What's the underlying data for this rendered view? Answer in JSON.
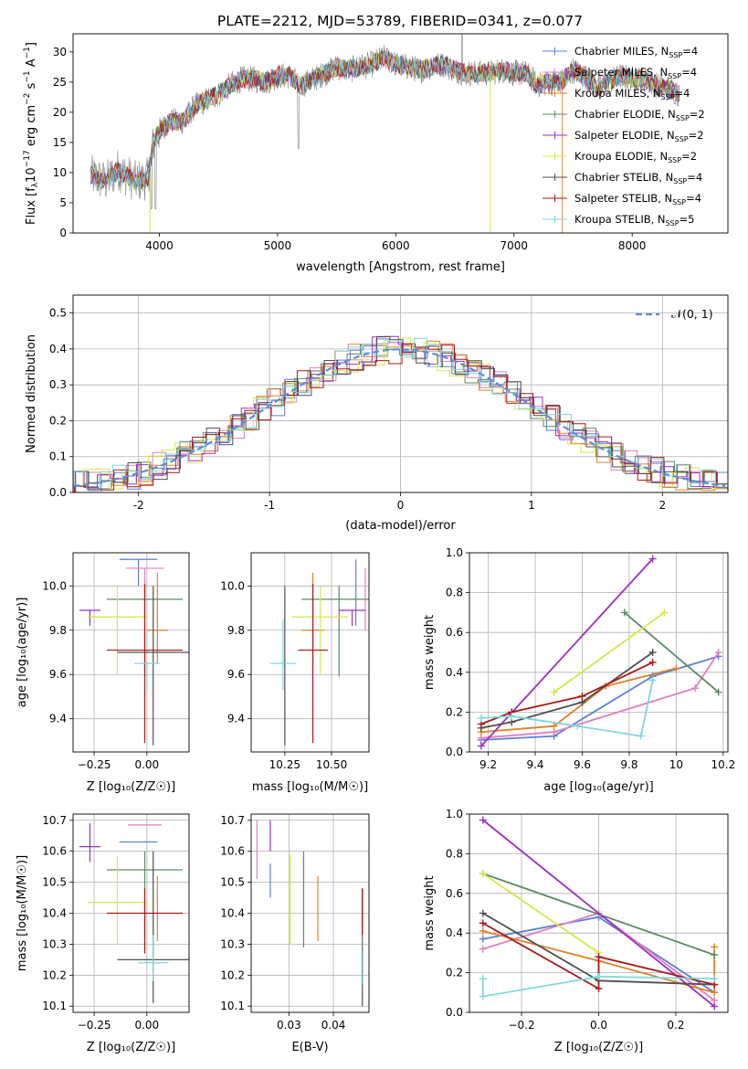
{
  "title": "PLATE=2212, MJD=53789, FIBERID=0341, z=0.077",
  "colors": {
    "Chabrier MILES": "#5b7fd9",
    "Salpeter MILES": "#e07fc0",
    "Kroupa MILES": "#e0822b",
    "Chabrier ELODIE": "#5c8a6a",
    "Salpeter ELODIE": "#9b30c0",
    "Kroupa ELODIE": "#d4e84a",
    "Chabrier STELIB": "#505050",
    "Salpeter STELIB": "#a81818",
    "Kroupa STELIB": "#7fd8dc",
    "gaussian": "#5b8fd9",
    "data": "#808080"
  },
  "chart_data": [
    {
      "id": "spectrum",
      "type": "line",
      "xlabel": "wavelength [Angstrom, rest frame]",
      "ylabel": "Flux [f_λ10^-17 erg cm^-2 s^-1 A^-1]",
      "xlim": [
        3270,
        8810
      ],
      "ylim": [
        0,
        33
      ],
      "xticks": [
        4000,
        5000,
        6000,
        7000,
        8000
      ],
      "yticks": [
        0,
        5,
        10,
        15,
        20,
        25,
        30
      ],
      "legend_position": "right",
      "legend": [
        {
          "label": "Chabrier MILES, N",
          "sub": "SSP",
          "suffix": "=4"
        },
        {
          "label": "Salpeter MILES, N",
          "sub": "SSP",
          "suffix": "=4"
        },
        {
          "label": "Kroupa MILES, N",
          "sub": "SSP",
          "suffix": "=4"
        },
        {
          "label": "Chabrier ELODIE, N",
          "sub": "SSP",
          "suffix": "=2"
        },
        {
          "label": "Salpeter ELODIE, N",
          "sub": "SSP",
          "suffix": "=2"
        },
        {
          "label": "Kroupa ELODIE, N",
          "sub": "SSP",
          "suffix": "=2"
        },
        {
          "label": "Chabrier STELIB, N",
          "sub": "SSP",
          "suffix": "=4"
        },
        {
          "label": "Salpeter STELIB, N",
          "sub": "SSP",
          "suffix": "=4"
        },
        {
          "label": "Kroupa STELIB, N",
          "sub": "SSP",
          "suffix": "=5"
        }
      ],
      "continuum": [
        [
          3420,
          9.5
        ],
        [
          3550,
          8.5
        ],
        [
          3650,
          10.5
        ],
        [
          3800,
          8.5
        ],
        [
          3900,
          9
        ],
        [
          3950,
          15
        ],
        [
          4000,
          17
        ],
        [
          4100,
          18.5
        ],
        [
          4200,
          18.5
        ],
        [
          4300,
          21
        ],
        [
          4400,
          22
        ],
        [
          4500,
          23
        ],
        [
          4600,
          24.5
        ],
        [
          4700,
          25.5
        ],
        [
          4800,
          25.5
        ],
        [
          4900,
          25
        ],
        [
          5000,
          26
        ],
        [
          5100,
          26
        ],
        [
          5200,
          24.5
        ],
        [
          5300,
          25.5
        ],
        [
          5400,
          26.5
        ],
        [
          5500,
          27.5
        ],
        [
          5600,
          27
        ],
        [
          5700,
          27.5
        ],
        [
          5800,
          28
        ],
        [
          5900,
          29
        ],
        [
          6000,
          28
        ],
        [
          6100,
          27.5
        ],
        [
          6200,
          27
        ],
        [
          6300,
          27.5
        ],
        [
          6400,
          28
        ],
        [
          6500,
          27
        ],
        [
          6600,
          26.5
        ],
        [
          6700,
          26.5
        ],
        [
          6800,
          26.5
        ],
        [
          6900,
          27
        ],
        [
          7000,
          26.5
        ],
        [
          7100,
          26.5
        ],
        [
          7200,
          24.5
        ],
        [
          7300,
          25
        ],
        [
          7400,
          25
        ],
        [
          7500,
          27
        ],
        [
          7600,
          26
        ],
        [
          7700,
          24
        ],
        [
          7800,
          25
        ],
        [
          7900,
          26
        ],
        [
          8000,
          25.5
        ],
        [
          8100,
          25.5
        ],
        [
          8200,
          24.5
        ],
        [
          8300,
          24
        ],
        [
          8400,
          23
        ]
      ]
    },
    {
      "id": "residuals",
      "type": "histogram",
      "xlabel": "(data-model)/error",
      "ylabel": "Normed distribution",
      "xlim": [
        -2.5,
        2.5
      ],
      "ylim": [
        0,
        0.55
      ],
      "xticks": [
        -2,
        -1,
        0,
        1,
        2
      ],
      "yticks": [
        0.0,
        0.1,
        0.2,
        0.3,
        0.4,
        0.5
      ],
      "legend": "𝒩(0, 1)",
      "legend_position": "top-right",
      "grid": true
    },
    {
      "id": "age-vs-Z",
      "type": "errorbar",
      "xlabel": "Z [log₁₀(Z/Z☉)]",
      "ylabel": "age  [log₁₀(age/yr)]",
      "xlim": [
        -0.35,
        0.2
      ],
      "ylim": [
        9.25,
        10.15
      ],
      "xticks": [
        -0.25,
        0.0
      ],
      "xticklabels": [
        "−0.25",
        "0.00"
      ],
      "yticks": [
        9.4,
        9.6,
        9.8,
        10.0
      ],
      "points": [
        {
          "model": "Chabrier MILES",
          "x": -0.04,
          "xerr": 0.09,
          "y": 10.12,
          "yerr": [
            0.12,
            0.0
          ]
        },
        {
          "model": "Salpeter MILES",
          "x": -0.01,
          "xerr": 0.09,
          "y": 10.08,
          "yerr": [
            0.12,
            0.0
          ]
        },
        {
          "model": "Kroupa MILES",
          "x": 0.05,
          "xerr": 0.05,
          "y": 9.8,
          "yerr": [
            0.15,
            0.26
          ]
        },
        {
          "model": "Chabrier ELODIE",
          "x": -0.01,
          "xerr": 0.18,
          "y": 9.94,
          "yerr": [
            0.35,
            0.06
          ]
        },
        {
          "model": "Salpeter ELODIE",
          "x": -0.27,
          "xerr": 0.05,
          "y": 9.89,
          "yerr": [
            0.07,
            0.0
          ]
        },
        {
          "model": "Kroupa ELODIE",
          "x": -0.14,
          "xerr": 0.14,
          "y": 9.86,
          "yerr": [
            0.26,
            0.14
          ]
        },
        {
          "model": "Chabrier STELIB",
          "x": 0.03,
          "xerr": 0.17,
          "y": 9.7,
          "yerr": [
            0.42,
            0.3
          ]
        },
        {
          "model": "Salpeter STELIB",
          "x": -0.01,
          "xerr": 0.18,
          "y": 9.71,
          "yerr": [
            0.42,
            0.3
          ]
        },
        {
          "model": "Kroupa STELIB",
          "x": 0.0,
          "xerr": 0.06,
          "y": 9.65,
          "yerr": [
            0.12,
            0.0
          ]
        }
      ]
    },
    {
      "id": "age-vs-mass",
      "type": "errorbar",
      "xlabel": "mass [log₁₀(M/M☉)]",
      "ylabel": "",
      "xlim": [
        10.07,
        10.7
      ],
      "ylim": [
        9.25,
        10.15
      ],
      "xticks": [
        10.25,
        10.5
      ],
      "xticklabels": [
        "10.25",
        "10.50"
      ],
      "yticks": [
        9.4,
        9.6,
        9.8,
        10.0
      ],
      "points": [
        {
          "model": "Chabrier MILES",
          "x": 10.63,
          "xerr": 0.0,
          "y": 10.12,
          "yerr": [
            0.3,
            0.0
          ]
        },
        {
          "model": "Salpeter MILES",
          "x": 10.68,
          "xerr": 0.0,
          "y": 10.08,
          "yerr": [
            0.28,
            0.0
          ]
        },
        {
          "model": "Kroupa MILES",
          "x": 10.4,
          "xerr": 0.06,
          "y": 9.8,
          "yerr": [
            0.15,
            0.26
          ]
        },
        {
          "model": "Chabrier ELODIE",
          "x": 10.54,
          "xerr": 0.2,
          "y": 9.94,
          "yerr": [
            0.35,
            0.06
          ]
        },
        {
          "model": "Salpeter ELODIE",
          "x": 10.61,
          "xerr": 0.07,
          "y": 9.89,
          "yerr": [
            0.07,
            0.0
          ]
        },
        {
          "model": "Kroupa ELODIE",
          "x": 10.44,
          "xerr": 0.15,
          "y": 9.86,
          "yerr": [
            0.26,
            0.14
          ]
        },
        {
          "model": "Chabrier STELIB",
          "x": 10.25,
          "xerr": 0.0,
          "y": 9.7,
          "yerr": [
            0.42,
            0.3
          ]
        },
        {
          "model": "Salpeter STELIB",
          "x": 10.4,
          "xerr": 0.08,
          "y": 9.71,
          "yerr": [
            0.42,
            0.3
          ]
        },
        {
          "model": "Kroupa STELIB",
          "x": 10.24,
          "xerr": 0.07,
          "y": 9.65,
          "yerr": [
            0.12,
            0.2
          ]
        }
      ]
    },
    {
      "id": "weight-vs-age",
      "type": "line",
      "xlabel": "age  [log₁₀(age/yr)]",
      "ylabel": "mass weight",
      "xlim": [
        9.12,
        10.22
      ],
      "ylim": [
        0.0,
        1.0
      ],
      "xticks": [
        9.2,
        9.4,
        9.6,
        9.8,
        10.0,
        10.2
      ],
      "yticks": [
        0.0,
        0.2,
        0.4,
        0.6,
        0.8,
        1.0
      ],
      "grid": true,
      "series": [
        {
          "model": "Chabrier MILES",
          "x": [
            9.17,
            9.48,
            9.9,
            10.18
          ],
          "y": [
            0.06,
            0.08,
            0.38,
            0.48
          ]
        },
        {
          "model": "Salpeter MILES",
          "x": [
            9.17,
            9.48,
            10.08,
            10.18
          ],
          "y": [
            0.07,
            0.1,
            0.32,
            0.5
          ]
        },
        {
          "model": "Kroupa MILES",
          "x": [
            9.17,
            9.48,
            9.7,
            10.0
          ],
          "y": [
            0.1,
            0.13,
            0.33,
            0.42
          ]
        },
        {
          "model": "Chabrier ELODIE",
          "x": [
            9.78,
            10.18
          ],
          "y": [
            0.7,
            0.3
          ]
        },
        {
          "model": "Salpeter ELODIE",
          "x": [
            9.17,
            9.9
          ],
          "y": [
            0.03,
            0.97
          ]
        },
        {
          "model": "Kroupa ELODIE",
          "x": [
            9.48,
            9.95
          ],
          "y": [
            0.3,
            0.7
          ]
        },
        {
          "model": "Chabrier STELIB",
          "x": [
            9.17,
            9.3,
            9.6,
            9.9
          ],
          "y": [
            0.12,
            0.15,
            0.25,
            0.5
          ]
        },
        {
          "model": "Salpeter STELIB",
          "x": [
            9.17,
            9.3,
            9.6,
            9.9
          ],
          "y": [
            0.14,
            0.2,
            0.28,
            0.45
          ]
        },
        {
          "model": "Kroupa STELIB",
          "x": [
            9.17,
            9.3,
            9.58,
            9.85,
            9.9
          ],
          "y": [
            0.17,
            0.18,
            0.13,
            0.08,
            0.36
          ]
        }
      ]
    },
    {
      "id": "mass-vs-Z",
      "type": "errorbar",
      "xlabel": "Z [log₁₀(Z/Z☉)]",
      "ylabel": "mass [log₁₀(M/M☉)]",
      "xlim": [
        -0.35,
        0.2
      ],
      "ylim": [
        10.08,
        10.72
      ],
      "xticks": [
        -0.25,
        0.0
      ],
      "xticklabels": [
        "−0.25",
        "0.00"
      ],
      "yticks": [
        10.1,
        10.2,
        10.3,
        10.4,
        10.5,
        10.6,
        10.7
      ],
      "points": [
        {
          "model": "Chabrier MILES",
          "x": -0.04,
          "xerr": 0.09,
          "y": 10.63,
          "yerr": [
            0.0,
            0.0
          ]
        },
        {
          "model": "Salpeter MILES",
          "x": -0.01,
          "xerr": 0.08,
          "y": 10.685,
          "yerr": [
            0.0,
            0.0
          ]
        },
        {
          "model": "Kroupa MILES",
          "x": 0.05,
          "xerr": 0.0,
          "y": 10.4,
          "yerr": [
            0.09,
            0.12
          ]
        },
        {
          "model": "Chabrier ELODIE",
          "x": -0.01,
          "xerr": 0.18,
          "y": 10.54,
          "yerr": [
            0.26,
            0.06
          ]
        },
        {
          "model": "Salpeter ELODIE",
          "x": -0.27,
          "xerr": 0.05,
          "y": 10.615,
          "yerr": [
            0.05,
            0.075
          ]
        },
        {
          "model": "Kroupa ELODIE",
          "x": -0.14,
          "xerr": 0.14,
          "y": 10.435,
          "yerr": [
            0.135,
            0.15
          ]
        },
        {
          "model": "Chabrier STELIB",
          "x": 0.03,
          "xerr": 0.17,
          "y": 10.25,
          "yerr": [
            0.14,
            0.35
          ]
        },
        {
          "model": "Salpeter STELIB",
          "x": -0.01,
          "xerr": 0.18,
          "y": 10.4,
          "yerr": [
            0.13,
            0.08
          ]
        },
        {
          "model": "Kroupa STELIB",
          "x": 0.03,
          "xerr": 0.07,
          "y": 10.24,
          "yerr": [
            0.06,
            0.09
          ]
        }
      ]
    },
    {
      "id": "mass-vs-ebv",
      "type": "errorbar",
      "xlabel": "E(B-V)",
      "ylabel": "",
      "xlim": [
        0.0215,
        0.048
      ],
      "ylim": [
        10.08,
        10.72
      ],
      "xticks": [
        0.03,
        0.04
      ],
      "xticklabels": [
        "0.03",
        "0.04"
      ],
      "yticks": [
        10.1,
        10.2,
        10.3,
        10.4,
        10.5,
        10.6,
        10.7
      ],
      "points": [
        {
          "model": "Chabrier MILES",
          "x": 0.0258,
          "xerr": 0.0,
          "y": 10.45,
          "yerr": [
            0.0,
            0.11
          ]
        },
        {
          "model": "Salpeter MILES",
          "x": 0.0228,
          "xerr": 0.0,
          "y": 10.6,
          "yerr": [
            0.09,
            0.1
          ]
        },
        {
          "model": "Kroupa MILES",
          "x": 0.0365,
          "xerr": 0.0,
          "y": 10.415,
          "yerr": [
            0.105,
            0.105
          ]
        },
        {
          "model": "Chabrier ELODIE",
          "x": 0.0333,
          "xerr": 0.0,
          "y": 10.45,
          "yerr": [
            0.16,
            0.15
          ]
        },
        {
          "model": "Salpeter ELODIE",
          "x": 0.0258,
          "xerr": 0.0,
          "y": 10.6,
          "yerr": [
            0.0,
            0.1
          ]
        },
        {
          "model": "Kroupa ELODIE",
          "x": 0.0303,
          "xerr": 0.0,
          "y": 10.45,
          "yerr": [
            0.15,
            0.14
          ]
        },
        {
          "model": "Chabrier STELIB",
          "x": 0.0465,
          "xerr": 0.0,
          "y": 10.3,
          "yerr": [
            0.2,
            0.18
          ]
        },
        {
          "model": "Salpeter STELIB",
          "x": 0.0465,
          "xerr": 0.0,
          "y": 10.4,
          "yerr": [
            0.13,
            0.08
          ]
        },
        {
          "model": "Kroupa STELIB",
          "x": 0.0466,
          "xerr": 0.0,
          "y": 10.25,
          "yerr": [
            0.08,
            0.08
          ]
        }
      ]
    },
    {
      "id": "weight-vs-Z",
      "type": "line",
      "xlabel": "Z [log₁₀(Z/Z☉)]",
      "ylabel": "mass weight",
      "xlim": [
        -0.335,
        0.335
      ],
      "ylim": [
        0.0,
        1.0
      ],
      "xticks": [
        -0.2,
        0.0,
        0.2
      ],
      "xticklabels": [
        "−0.2",
        "0.0",
        "0.2"
      ],
      "yticks": [
        0.0,
        0.2,
        0.4,
        0.6,
        0.8,
        1.0
      ],
      "grid": true,
      "series": [
        {
          "model": "Chabrier MILES",
          "x": [
            -0.3,
            0.0,
            0.3
          ],
          "y": [
            0.37,
            0.48,
            0.1
          ]
        },
        {
          "model": "Salpeter MILES",
          "x": [
            -0.3,
            0.0,
            0.3
          ],
          "y": [
            0.32,
            0.5,
            0.06
          ]
        },
        {
          "model": "Kroupa MILES",
          "x": [
            -0.3,
            0.0,
            0.3,
            0.3
          ],
          "y": [
            0.41,
            0.26,
            0.1,
            0.33
          ]
        },
        {
          "model": "Chabrier ELODIE",
          "x": [
            -0.3,
            0.3
          ],
          "y": [
            0.7,
            0.29
          ]
        },
        {
          "model": "Salpeter ELODIE",
          "x": [
            -0.3,
            0.3
          ],
          "y": [
            0.97,
            0.03
          ]
        },
        {
          "model": "Kroupa ELODIE",
          "x": [
            -0.3,
            0.0
          ],
          "y": [
            0.7,
            0.3
          ]
        },
        {
          "model": "Chabrier STELIB",
          "x": [
            -0.3,
            0.0,
            0.3
          ],
          "y": [
            0.5,
            0.16,
            0.14
          ]
        },
        {
          "model": "Salpeter STELIB",
          "x": [
            -0.3,
            0.0,
            0.0,
            0.3
          ],
          "y": [
            0.45,
            0.12,
            0.28,
            0.14
          ]
        },
        {
          "model": "Kroupa STELIB",
          "x": [
            -0.3,
            -0.3,
            0.0,
            0.3
          ],
          "y": [
            0.17,
            0.08,
            0.18,
            0.17
          ]
        }
      ]
    }
  ]
}
